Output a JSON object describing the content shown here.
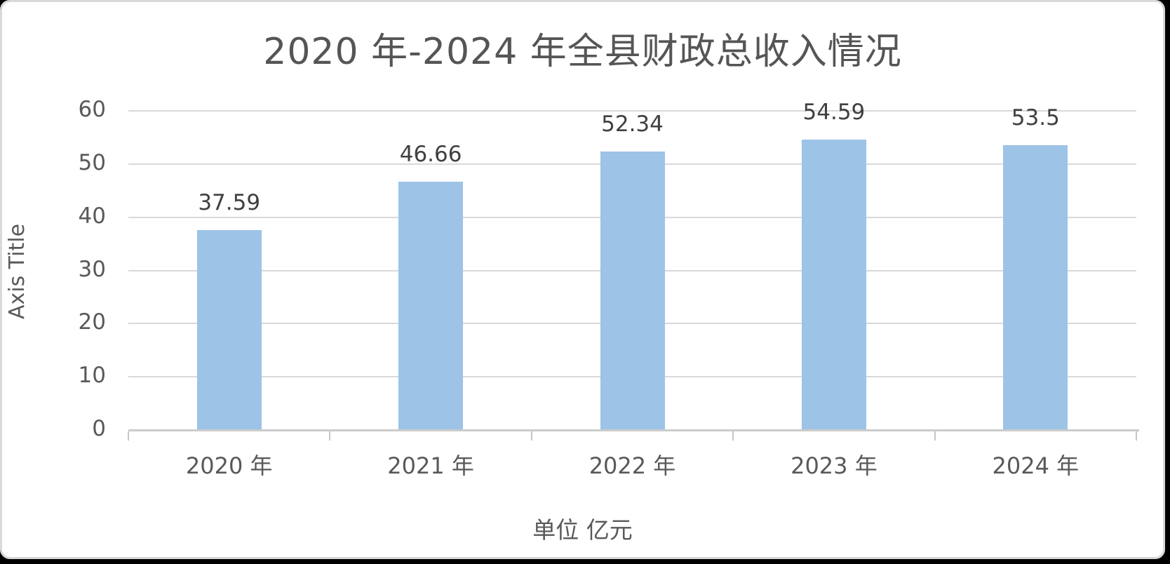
{
  "frame": {
    "page_background": "#000000",
    "chart_background": "#ffffff",
    "border_color": "#d9d9d9"
  },
  "chart_data": {
    "type": "bar",
    "title": "2020 年-2024 年全县财政总收入情况",
    "categories": [
      "2020 年",
      "2021 年",
      "2022 年",
      "2023 年",
      "2024 年"
    ],
    "values": [
      37.59,
      46.66,
      52.34,
      54.59,
      53.5
    ],
    "data_labels": [
      "37.59",
      "46.66",
      "52.34",
      "54.59",
      "53.5"
    ],
    "ylabel": "Axis Title",
    "xlabel": "单位 亿元",
    "ylim": [
      0,
      60
    ],
    "yticks": [
      0,
      10,
      20,
      30,
      40,
      50,
      60
    ],
    "grid": true,
    "legend": false,
    "bar_color": "#9DC3E6",
    "gridline_color": "#D9D9D9",
    "axis_line_color": "#CCCCCC",
    "text_color": "#595959",
    "data_label_color": "#404040"
  }
}
